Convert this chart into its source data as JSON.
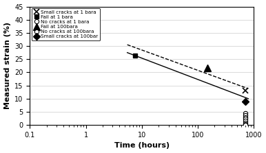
{
  "xlabel": "Time (hours)",
  "ylabel": "Measured strain (%)",
  "xlim": [
    0.1,
    1000.0
  ],
  "ylim": [
    0,
    45
  ],
  "yticks": [
    0,
    5,
    10,
    15,
    20,
    25,
    30,
    35,
    40,
    45
  ],
  "fail_1bara_x": [
    7.5
  ],
  "fail_1bara_y": [
    26.3
  ],
  "fail_100bara_x": [
    150
  ],
  "fail_100bara_y": [
    21.8
  ],
  "small_cracks_1bara_x": [
    700
  ],
  "small_cracks_1bara_y": [
    13.0
  ],
  "small_cracks_100bar_x": [
    700
  ],
  "small_cracks_100bar_y": [
    8.8
  ],
  "no_cracks_1bara_x": [
    700,
    700,
    700,
    700,
    700,
    700,
    700
  ],
  "no_cracks_1bara_y": [
    4.5,
    3.7,
    3.0,
    2.3,
    1.6,
    0.9,
    0.2
  ],
  "no_cracks_100bara_x": [
    700
  ],
  "no_cracks_100bara_y": [
    0.0
  ],
  "line1_x": [
    5.5,
    800
  ],
  "line1_y": [
    27.5,
    10.0
  ],
  "line2_x": [
    5.5,
    800
  ],
  "line2_y": [
    30.5,
    13.8
  ],
  "legend_labels": [
    "Small cracks at 1 bara",
    "Fail at 1 bara",
    "No cracks at 1 bara",
    "Fail at 100bara",
    "No cracks at 100bara",
    "Small cracks at 100bar"
  ]
}
